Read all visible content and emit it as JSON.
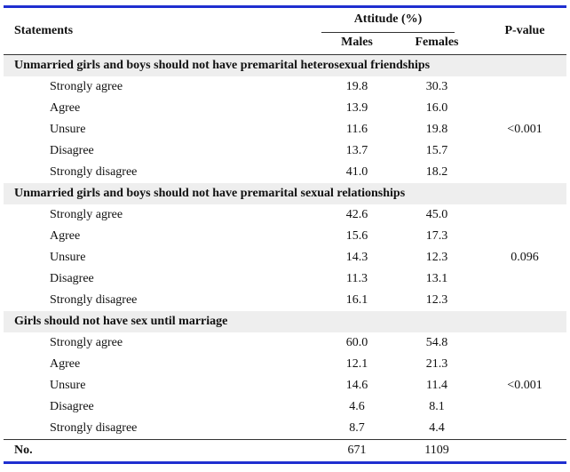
{
  "header": {
    "statements": "Statements",
    "attitude": "Attitude (%)",
    "males": "Males",
    "females": "Females",
    "pvalue": "P-value"
  },
  "sections": [
    {
      "title": "Unmarried girls and boys should not have premarital heterosexual friendships",
      "pvalue": "<0.001",
      "rows": [
        {
          "label": "Strongly agree",
          "males": "19.8",
          "females": "30.3"
        },
        {
          "label": "Agree",
          "males": "13.9",
          "females": "16.0"
        },
        {
          "label": "Unsure",
          "males": "11.6",
          "females": "19.8"
        },
        {
          "label": "Disagree",
          "males": "13.7",
          "females": "15.7"
        },
        {
          "label": "Strongly disagree",
          "males": "41.0",
          "females": "18.2"
        }
      ]
    },
    {
      "title": "Unmarried girls and boys should not have premarital sexual relationships",
      "pvalue": "0.096",
      "rows": [
        {
          "label": "Strongly agree",
          "males": "42.6",
          "females": "45.0"
        },
        {
          "label": "Agree",
          "males": "15.6",
          "females": "17.3"
        },
        {
          "label": "Unsure",
          "males": "14.3",
          "females": "12.3"
        },
        {
          "label": "Disagree",
          "males": "11.3",
          "females": "13.1"
        },
        {
          "label": "Strongly disagree",
          "males": "16.1",
          "females": "12.3"
        }
      ]
    },
    {
      "title": "Girls should not have sex until marriage",
      "pvalue": "<0.001",
      "rows": [
        {
          "label": "Strongly agree",
          "males": "60.0",
          "females": "54.8"
        },
        {
          "label": "Agree",
          "males": "12.1",
          "females": "21.3"
        },
        {
          "label": "Unsure",
          "males": "14.6",
          "females": "11.4"
        },
        {
          "label": "Disagree",
          "males": "4.6",
          "females": "8.1"
        },
        {
          "label": "Strongly disagree",
          "males": "8.7",
          "females": "4.4"
        }
      ]
    }
  ],
  "footer": {
    "label": "No.",
    "males": "671",
    "females": "1109"
  }
}
